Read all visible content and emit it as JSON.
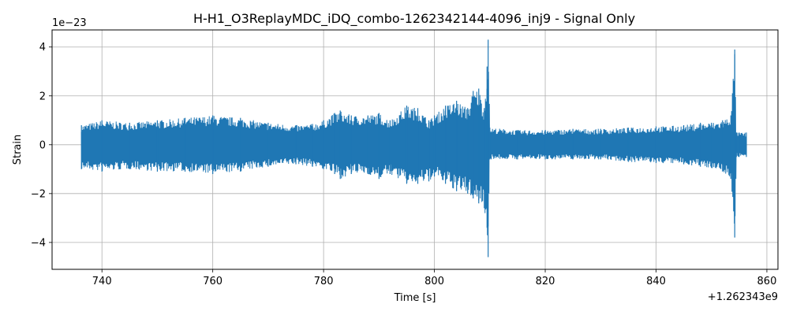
{
  "chart_data": {
    "type": "line",
    "title": "H-H1_O3ReplayMDC_iDQ_combo-1262342144-4096_inj9 - Signal Only",
    "xlabel": "Time [s]",
    "ylabel": "Strain",
    "x_offset_label": "+1.262343e9",
    "y_scale_label": "1e−23",
    "xlim": [
      731,
      862
    ],
    "ylim": [
      -5.1,
      4.7
    ],
    "xticks": [
      740,
      760,
      780,
      800,
      820,
      840,
      860
    ],
    "yticks": [
      -4,
      -2,
      0,
      2,
      4
    ],
    "xtick_labels": [
      "740",
      "760",
      "780",
      "800",
      "820",
      "840",
      "860"
    ],
    "ytick_labels": [
      "−4",
      "−2",
      "0",
      "2",
      "4"
    ],
    "grid": true,
    "color": "#1f77b4",
    "series": [
      {
        "x": [
          736.3,
          740,
          745,
          750,
          755,
          760,
          765,
          770,
          775,
          778,
          780,
          782,
          783,
          785,
          788,
          790,
          792,
          795,
          797,
          799,
          800,
          802,
          804,
          806,
          807,
          808,
          809,
          809.5,
          809.7,
          810,
          815,
          820,
          825,
          830,
          835,
          840,
          845,
          848,
          850,
          852,
          853.5,
          854.2,
          854.5,
          855,
          856.3
        ],
        "upper": [
          0.8,
          1.0,
          0.9,
          1.0,
          1.1,
          1.2,
          1.1,
          0.9,
          0.8,
          0.85,
          1.0,
          1.3,
          1.4,
          1.2,
          1.2,
          1.3,
          1.0,
          1.6,
          1.5,
          1.0,
          1.2,
          1.6,
          1.8,
          1.5,
          2.2,
          2.3,
          1.5,
          3.2,
          4.3,
          0.7,
          0.6,
          0.6,
          0.65,
          0.65,
          0.7,
          0.75,
          0.8,
          0.9,
          0.9,
          1.0,
          1.2,
          3.9,
          0.5,
          0.5,
          0.5
        ],
        "lower": [
          -1.0,
          -1.1,
          -1.0,
          -1.1,
          -1.1,
          -1.2,
          -1.1,
          -0.9,
          -0.8,
          -0.9,
          -1.0,
          -1.2,
          -1.4,
          -1.2,
          -1.2,
          -1.4,
          -1.2,
          -1.6,
          -1.6,
          -1.5,
          -1.3,
          -1.6,
          -1.9,
          -2.0,
          -2.2,
          -2.4,
          -2.6,
          -3.4,
          -4.6,
          -0.6,
          -0.6,
          -0.6,
          -0.6,
          -0.6,
          -0.7,
          -0.75,
          -0.8,
          -0.9,
          -0.95,
          -1.1,
          -1.4,
          -3.8,
          -0.5,
          -0.5,
          -0.5
        ]
      }
    ]
  }
}
